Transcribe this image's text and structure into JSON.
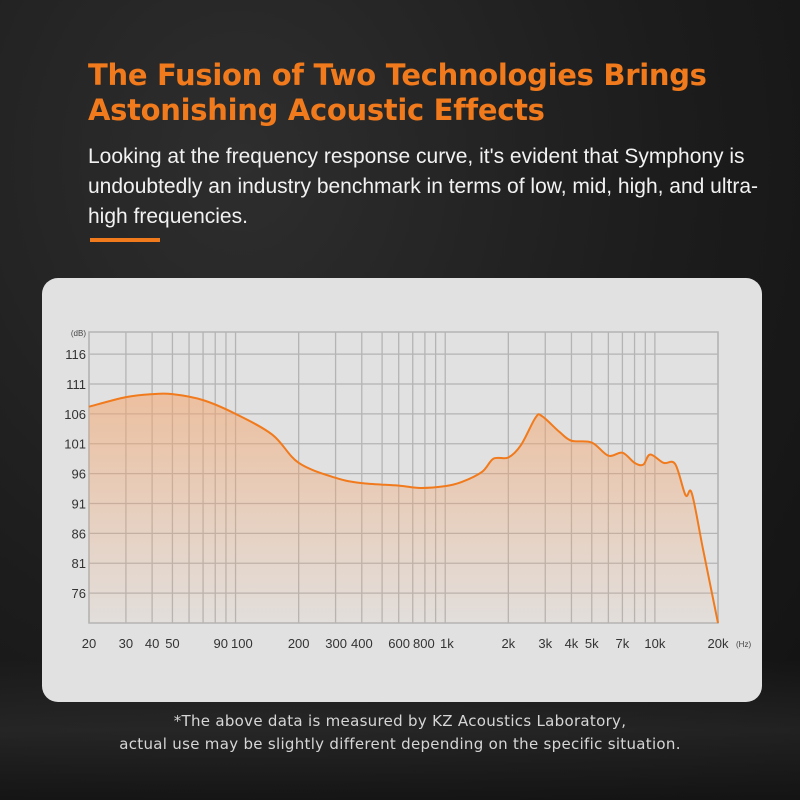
{
  "header": {
    "title_line1": "The Fusion of Two Technologies Brings",
    "title_line2": "Astonishing Acoustic Effects",
    "subtitle": "Looking at the frequency response curve, it's evident that Symphony is undoubtedly an industry benchmark in terms of low, mid, high, and ultra-high frequencies."
  },
  "footnote": {
    "line1": "*The above data is measured by KZ Acoustics Laboratory,",
    "line2": "actual use may be slightly different depending on the specific situation."
  },
  "colors": {
    "accent": "#f07a1c",
    "curve": "#f07a1c",
    "card": "#e1e1e1",
    "grid": "#b4b4b4"
  },
  "chart_data": {
    "type": "area",
    "xscale": "log",
    "xlim": [
      20,
      20000
    ],
    "ylim": [
      71,
      119.7
    ],
    "grid": true,
    "ylabel": "(dB)",
    "xlabel": "(Hz)",
    "yticks": [
      116,
      111,
      106,
      101,
      96,
      91,
      86,
      81,
      76
    ],
    "xticks": [
      {
        "v": 20,
        "label": "20"
      },
      {
        "v": 30,
        "label": "30"
      },
      {
        "v": 40,
        "label": "40"
      },
      {
        "v": 50,
        "label": "50"
      },
      {
        "v": 90,
        "label": "90"
      },
      {
        "v": 100,
        "label": "100"
      },
      {
        "v": 200,
        "label": "200"
      },
      {
        "v": 300,
        "label": "300"
      },
      {
        "v": 400,
        "label": "400"
      },
      {
        "v": 600,
        "label": "600"
      },
      {
        "v": 800,
        "label": "800"
      },
      {
        "v": 1000,
        "label": "1k"
      },
      {
        "v": 2000,
        "label": "2k"
      },
      {
        "v": 3000,
        "label": "3k"
      },
      {
        "v": 4000,
        "label": "4k"
      },
      {
        "v": 5000,
        "label": "5k"
      },
      {
        "v": 7000,
        "label": "7k"
      },
      {
        "v": 10000,
        "label": "10k"
      },
      {
        "v": 20000,
        "label": "20k"
      }
    ],
    "gridlines_x": [
      20,
      30,
      40,
      50,
      60,
      70,
      80,
      90,
      100,
      200,
      300,
      400,
      500,
      600,
      700,
      800,
      900,
      1000,
      2000,
      3000,
      4000,
      5000,
      6000,
      7000,
      8000,
      9000,
      10000,
      20000
    ],
    "series": [
      {
        "x": [
          20,
          30,
          40,
          50,
          70,
          100,
          150,
          200,
          300,
          400,
          600,
          760,
          1000,
          1200,
          1500,
          1700,
          2000,
          2300,
          2700,
          2900,
          3500,
          4000,
          5000,
          6000,
          7000,
          8000,
          8800,
          9500,
          11000,
          12500,
          14000,
          15000,
          17000,
          20000
        ],
        "y": [
          107.2,
          108.8,
          109.3,
          109.3,
          108.3,
          106,
          102.5,
          97.8,
          95.3,
          94.4,
          94,
          93.6,
          93.9,
          94.6,
          96.3,
          98.5,
          98.7,
          100.8,
          105.4,
          105.6,
          103,
          101.5,
          101.2,
          99,
          99.5,
          97.8,
          97.5,
          99.2,
          97.8,
          97.6,
          92.4,
          92.7,
          83.2,
          71
        ]
      }
    ]
  }
}
